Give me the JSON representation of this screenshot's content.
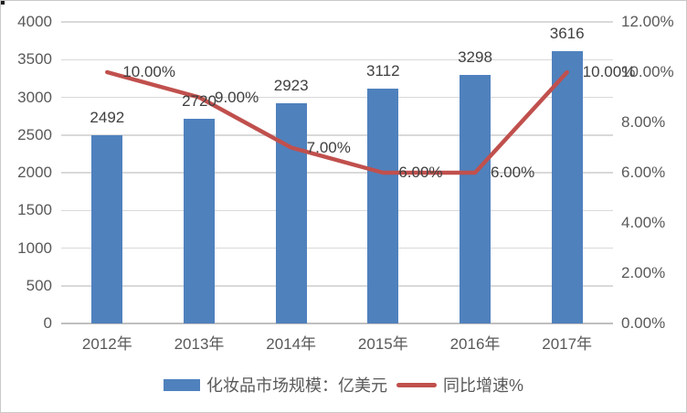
{
  "chart_data": {
    "type": "bar",
    "subtype": "bar-line-combo",
    "categories": [
      "2012年",
      "2013年",
      "2014年",
      "2015年",
      "2016年",
      "2017年"
    ],
    "series": [
      {
        "name": "化妆品市场规模：亿美元",
        "type": "bar",
        "axis": "left",
        "color": "#4F81BD",
        "values": [
          2492,
          2720,
          2923,
          3112,
          3298,
          3616
        ],
        "labels": [
          "2492",
          "2720",
          "2923",
          "3112",
          "3298",
          "3616"
        ]
      },
      {
        "name": "同比增速%",
        "type": "line",
        "axis": "right",
        "color": "#C0504D",
        "values": [
          10,
          9,
          7,
          6,
          6,
          10
        ],
        "labels": [
          "10.00%",
          "9.00%",
          "7.00%",
          "6.00%",
          "6.00%",
          "10.00%"
        ]
      }
    ],
    "left_axis": {
      "min": 0,
      "max": 4000,
      "step": 500,
      "ticks": [
        "4000",
        "3500",
        "3000",
        "2500",
        "2000",
        "1500",
        "1000",
        "500",
        "0"
      ]
    },
    "right_axis": {
      "min": 0,
      "max": 12,
      "step": 2,
      "ticks": [
        "12.00%",
        "10.00%",
        "8.00%",
        "6.00%",
        "4.00%",
        "2.00%",
        "0.00%"
      ]
    },
    "grid": true,
    "legend_position": "bottom",
    "title": ""
  },
  "colors": {
    "bar": "#4F81BD",
    "line": "#C0504D",
    "gridline": "#D9D9D9",
    "axis_line": "#BFBFBF",
    "tick_text": "#595959",
    "data_label_text": "#404040"
  }
}
